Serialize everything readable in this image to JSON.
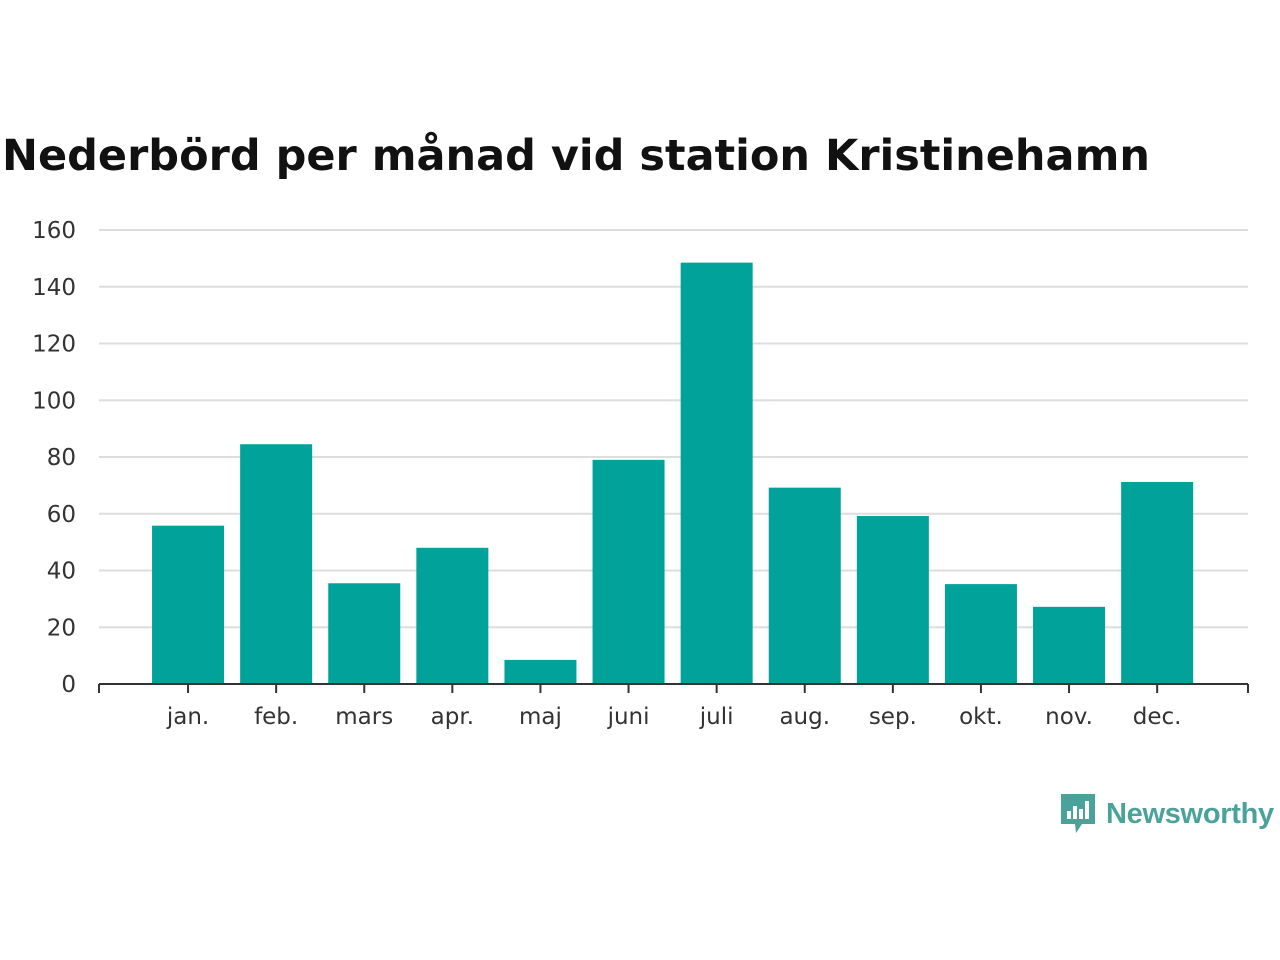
{
  "chart_data": {
    "type": "bar",
    "title": "Nederbörd per månad vid station Kristinehamn",
    "xlabel": "",
    "ylabel": "",
    "categories": [
      "jan.",
      "feb.",
      "mars",
      "apr.",
      "maj",
      "juni",
      "juli",
      "aug.",
      "sep.",
      "okt.",
      "nov.",
      "dec."
    ],
    "values": [
      55.8,
      84.5,
      35.5,
      48,
      8.5,
      79,
      148.5,
      69.2,
      59.2,
      35.2,
      27.2,
      71.2
    ],
    "ylim": [
      0,
      160
    ],
    "yticks": [
      0,
      20,
      40,
      60,
      80,
      100,
      120,
      140,
      160
    ],
    "grid": true,
    "colors": {
      "bar": "#00a29a",
      "grid": "#dddddd",
      "axis": "#333333"
    }
  },
  "brand": {
    "name": "Newsworthy",
    "icon": "bar-chart-speech-bubble-icon"
  }
}
